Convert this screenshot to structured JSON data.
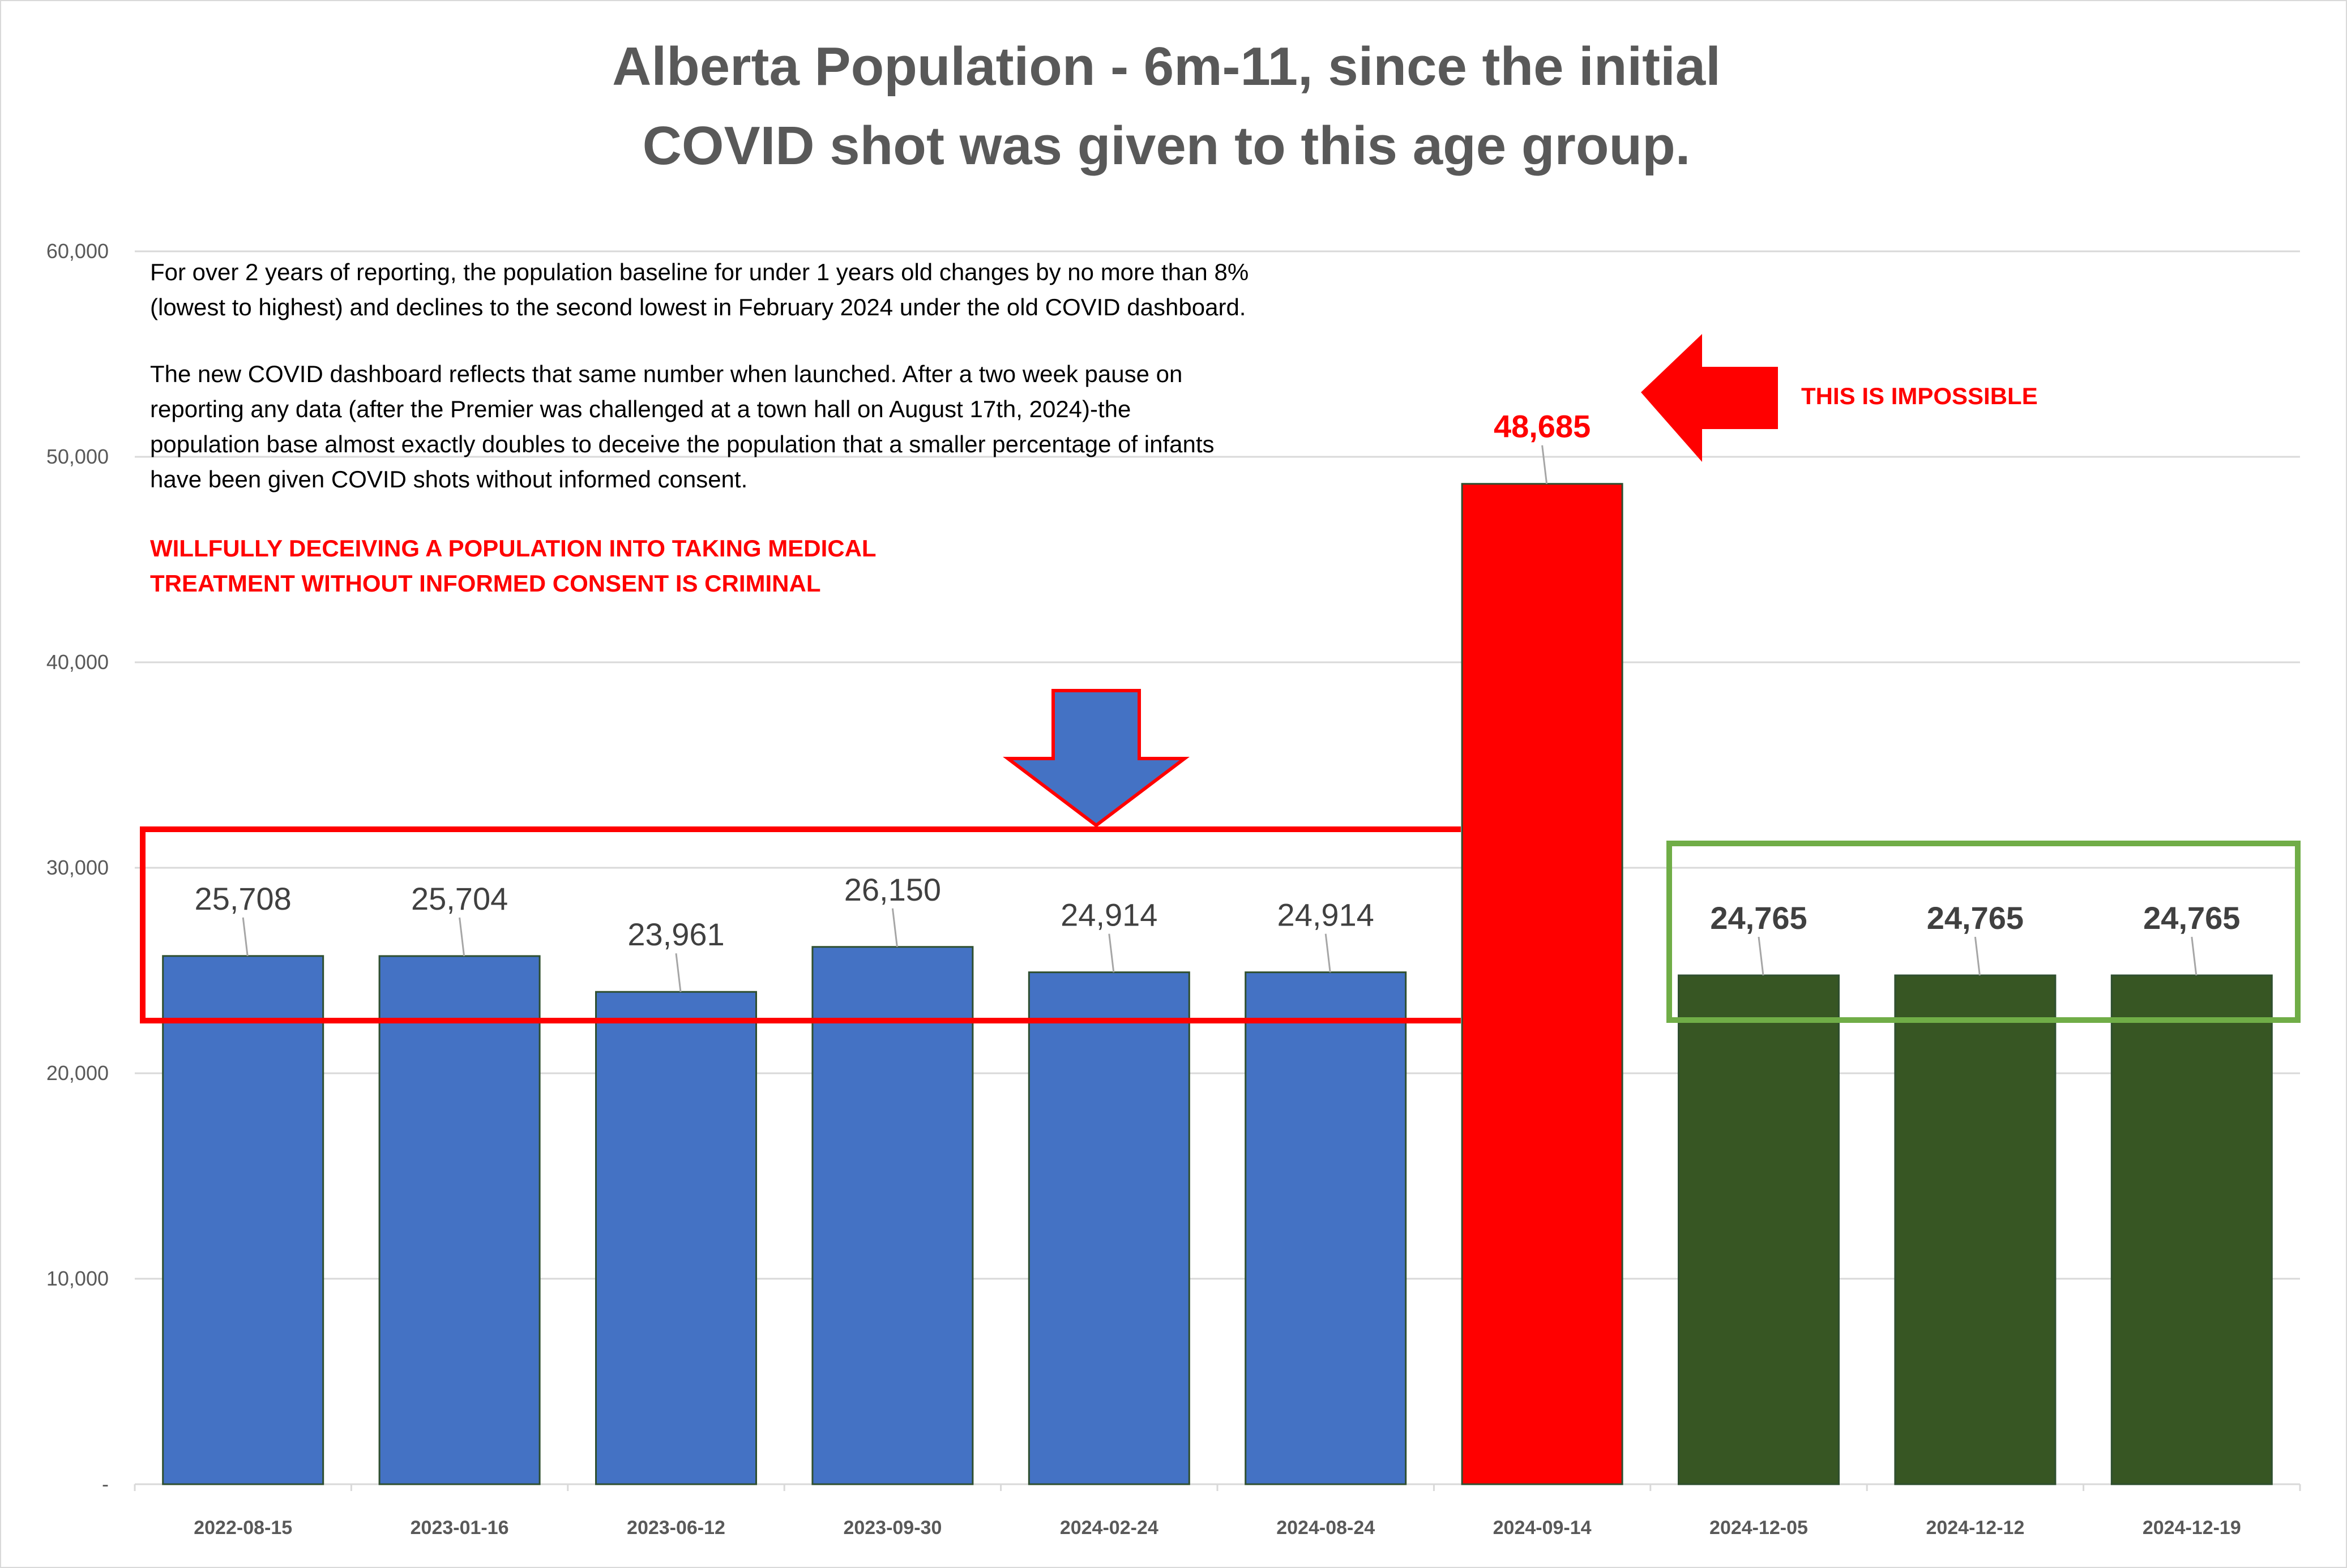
{
  "chart_data": {
    "type": "bar",
    "title_lines": [
      "Alberta Population  - 6m-11, since the initial",
      "COVID shot was given to this age group."
    ],
    "categories": [
      "2022-08-15",
      "2023-01-16",
      "2023-06-12",
      "2023-09-30",
      "2024-02-24",
      "2024-08-24",
      "2024-09-14",
      "2024-12-05",
      "2024-12-12",
      "2024-12-19"
    ],
    "values": [
      25708,
      25704,
      23961,
      26150,
      24914,
      24914,
      48685,
      24765,
      24765,
      24765
    ],
    "value_labels": [
      "25,708",
      "25,704",
      "23,961",
      "26,150",
      "24,914",
      "24,914",
      "48,685",
      "24,765",
      "24,765",
      "24,765"
    ],
    "bar_colors": [
      "#4472c4",
      "#4472c4",
      "#4472c4",
      "#4472c4",
      "#4472c4",
      "#4472c4",
      "#ff0000",
      "#375623",
      "#375623",
      "#375623"
    ],
    "label_colors": [
      "#404040",
      "#404040",
      "#404040",
      "#404040",
      "#404040",
      "#404040",
      "#ff0000",
      "#404040",
      "#404040",
      "#404040"
    ],
    "label_bold": [
      false,
      false,
      false,
      false,
      false,
      false,
      true,
      true,
      true,
      true
    ],
    "ylim": [
      0,
      60000
    ],
    "yticks": [
      0,
      10000,
      20000,
      30000,
      40000,
      50000,
      60000
    ],
    "ytick_labels": [
      "-",
      "10,000",
      "20,000",
      "30,000",
      "40,000",
      "50,000",
      "60,000"
    ],
    "grid": true,
    "legend": "none",
    "annotations": {
      "note_lines": [
        "For over 2 years of reporting, the population baseline for under 1 years old changes by no more than 8%",
        "(lowest to highest) and declines to the second lowest in February 2024 under the old COVID dashboard.",
        "",
        "The new COVID dashboard reflects that same number when launched. After a two week pause on",
        "reporting any data (after the Premier was challenged at a town hall on August 17th, 2024)-the",
        "population base almost exactly doubles to deceive the population that a smaller percentage of infants",
        "have been given COVID shots without informed consent."
      ],
      "warning_lines": [
        "WILLFULLY DECEIVING A POPULATION INTO TAKING MEDICAL",
        "TREATMENT WITHOUT INFORMED CONSENT IS CRIMINAL"
      ],
      "impossible_label": "THIS IS IMPOSSIBLE"
    },
    "colors": {
      "blue": "#4472c4",
      "red": "#ff0000",
      "green_bar": "#375623",
      "green_box": "#70ad47",
      "grid": "#d9d9d9",
      "text_gray": "#595959"
    }
  }
}
